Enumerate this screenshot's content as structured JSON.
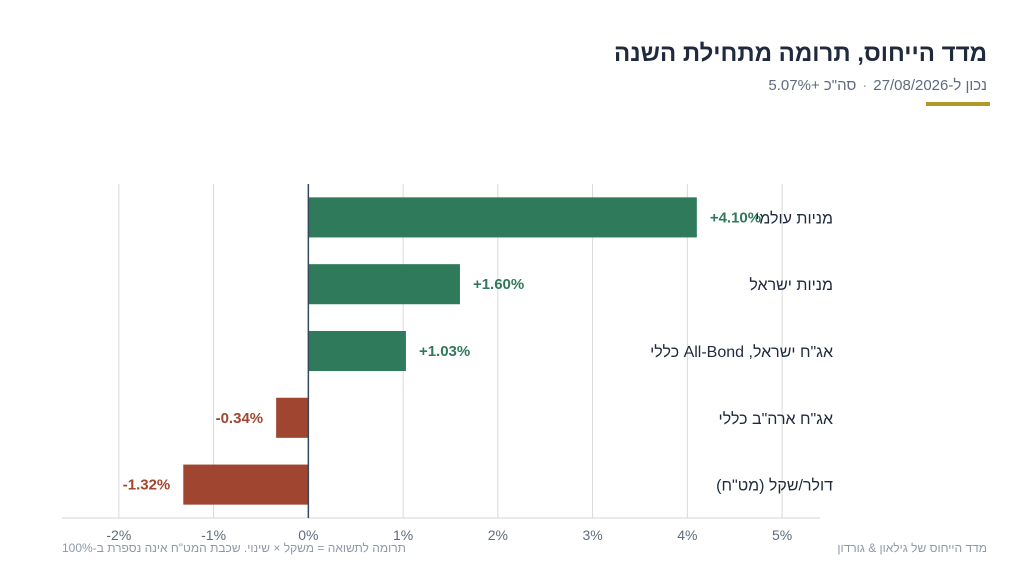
{
  "header": {
    "title": "מדד הייחוס, תרומה מתחילת השנה",
    "as_of": "נכון ל-27/08/2026",
    "separator": "·",
    "total": "סה\"כ +5.07%"
  },
  "colors": {
    "positive": "#2e7a5a",
    "negative": "#a04630",
    "axis": "#34495e",
    "grid": "#d9d9d9",
    "accent": "#b09a2e"
  },
  "chart_data": {
    "type": "bar",
    "orientation": "horizontal",
    "categories": [
      "מניות עולמי",
      "מניות ישראל",
      "אג\"ח ישראל, All-Bond כללי",
      "אג\"ח ארה\"ב כללי",
      "דולר/שקל (מט\"ח)"
    ],
    "values": [
      4.1,
      1.6,
      1.03,
      -0.34,
      -1.32
    ],
    "data_labels": [
      "+4.10%",
      "+1.60%",
      "+1.03%",
      "-0.34%",
      "-1.32%"
    ],
    "x_ticks": [
      -2,
      -1,
      0,
      1,
      2,
      3,
      4,
      5
    ],
    "x_tick_labels": [
      "-2%",
      "-1%",
      "0%",
      "1%",
      "2%",
      "3%",
      "4%",
      "5%"
    ],
    "xlim": [
      -2.6,
      5.4
    ],
    "grid": true
  },
  "footer": {
    "note": "תרומה לתשואה = משקל × שינוי. שכבת המט\"ח אינה נספרת ב-100%",
    "source": "מדד הייחוס של גילאון & גורדון"
  }
}
